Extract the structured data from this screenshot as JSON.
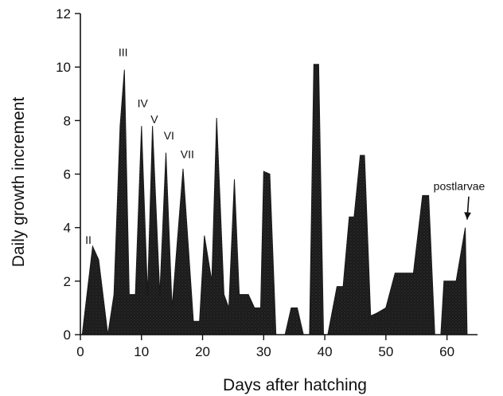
{
  "chart_data": {
    "type": "area",
    "title": "",
    "xlabel": "Days after hatching",
    "ylabel": "Daily growth increment",
    "xlim": [
      0,
      65
    ],
    "ylim": [
      0,
      12
    ],
    "xticks": [
      0,
      10,
      20,
      30,
      40,
      50,
      60
    ],
    "yticks": [
      0,
      2,
      4,
      6,
      8,
      10,
      12
    ],
    "grid": false,
    "legend": "none",
    "fill_color": "#1a1a1a",
    "series": [
      {
        "points": [
          [
            0.3,
            0
          ],
          [
            2,
            3.3
          ],
          [
            3,
            2.8
          ],
          [
            4.5,
            0
          ],
          [
            5.5,
            1.5
          ],
          [
            6.5,
            7.8
          ],
          [
            7.2,
            9.9
          ],
          [
            8,
            1.5
          ],
          [
            9,
            1.5
          ],
          [
            10,
            7.8
          ],
          [
            11,
            1.5
          ],
          [
            11.8,
            7.8
          ],
          [
            13,
            1.5
          ],
          [
            14,
            6.8
          ],
          [
            15,
            1
          ],
          [
            16.8,
            6.2
          ],
          [
            18.5,
            0.5
          ],
          [
            19.5,
            0.5
          ],
          [
            20.3,
            3.7
          ],
          [
            21.5,
            2
          ],
          [
            22.3,
            8.1
          ],
          [
            23.5,
            1.5
          ],
          [
            24.3,
            1
          ],
          [
            25.2,
            5.8
          ],
          [
            26,
            1.5
          ],
          [
            27.5,
            1.5
          ],
          [
            28.5,
            1
          ],
          [
            29.5,
            1
          ],
          [
            30,
            6.1
          ],
          [
            31,
            6
          ],
          [
            32,
            0
          ],
          [
            33.5,
            0
          ],
          [
            34.5,
            1
          ],
          [
            35.5,
            1
          ],
          [
            36.5,
            0
          ],
          [
            37.5,
            0
          ],
          [
            38.2,
            10.1
          ],
          [
            39,
            10.1
          ],
          [
            39.8,
            0
          ],
          [
            40.5,
            0
          ],
          [
            42,
            1.8
          ],
          [
            43,
            1.8
          ],
          [
            44,
            4.4
          ],
          [
            44.8,
            4.4
          ],
          [
            45.8,
            6.7
          ],
          [
            46.5,
            6.7
          ],
          [
            47.5,
            0.7
          ],
          [
            48.5,
            0.8
          ],
          [
            50,
            1
          ],
          [
            51.5,
            2.3
          ],
          [
            54.5,
            2.3
          ],
          [
            56,
            5.2
          ],
          [
            57,
            5.2
          ],
          [
            58,
            0
          ],
          [
            59,
            0
          ],
          [
            59.5,
            2
          ],
          [
            61.5,
            2
          ],
          [
            63,
            4
          ],
          [
            63.3,
            0
          ]
        ]
      }
    ],
    "annotations": [
      {
        "text": "II",
        "x": 1.3,
        "y": 3.4
      },
      {
        "text": "III",
        "x": 7,
        "y": 10.4
      },
      {
        "text": "IV",
        "x": 10.2,
        "y": 8.5
      },
      {
        "text": "V",
        "x": 12.1,
        "y": 7.9
      },
      {
        "text": "VI",
        "x": 14.5,
        "y": 7.3
      },
      {
        "text": "VII",
        "x": 17.5,
        "y": 6.6
      },
      {
        "text": "postlarvae",
        "x": 62,
        "y": 5.4
      }
    ]
  }
}
